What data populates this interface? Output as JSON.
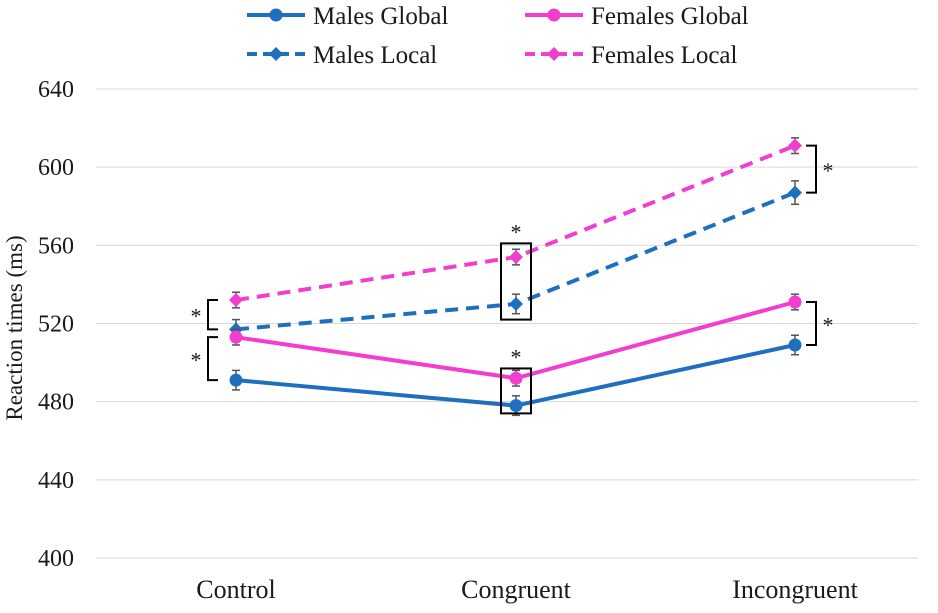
{
  "chart_data": {
    "type": "line",
    "title": "",
    "xlabel": "",
    "ylabel": "Reaction times (ms)",
    "ylim": [
      400,
      640
    ],
    "yticks": [
      400,
      440,
      480,
      520,
      560,
      600,
      640
    ],
    "grid": true,
    "legend_position": "top",
    "categories": [
      "Control",
      "Congruent",
      "Incongruent"
    ],
    "series": [
      {
        "name": "Males Global",
        "values": [
          491,
          478,
          509
        ],
        "errors": [
          5,
          5,
          5
        ],
        "color": "#1f6fbf",
        "line_style": "solid",
        "marker": "circle"
      },
      {
        "name": "Females Global",
        "values": [
          513,
          492,
          531
        ],
        "errors": [
          4,
          4,
          4
        ],
        "color": "#f23ecf",
        "line_style": "solid",
        "marker": "circle"
      },
      {
        "name": "Males Local",
        "values": [
          517,
          530,
          587
        ],
        "errors": [
          5,
          5,
          6
        ],
        "color": "#1f6fbf",
        "line_style": "dashed",
        "marker": "diamond"
      },
      {
        "name": "Females Local",
        "values": [
          532,
          554,
          611
        ],
        "errors": [
          4,
          4,
          4
        ],
        "color": "#f23ecf",
        "line_style": "dashed",
        "marker": "diamond"
      }
    ],
    "annotations": {
      "significance_marker": "*",
      "brackets": [
        {
          "category": "Control",
          "from": 491,
          "to": 513,
          "style": "bracket-left"
        },
        {
          "category": "Control",
          "from": 517,
          "to": 532,
          "style": "bracket-left"
        },
        {
          "category": "Congruent",
          "from": 474,
          "to": 497,
          "style": "box"
        },
        {
          "category": "Congruent",
          "from": 522,
          "to": 561,
          "style": "box"
        },
        {
          "category": "Incongruent",
          "from": 509,
          "to": 531,
          "style": "bracket-right"
        },
        {
          "category": "Incongruent",
          "from": 587,
          "to": 611,
          "style": "bracket-right"
        }
      ]
    }
  }
}
